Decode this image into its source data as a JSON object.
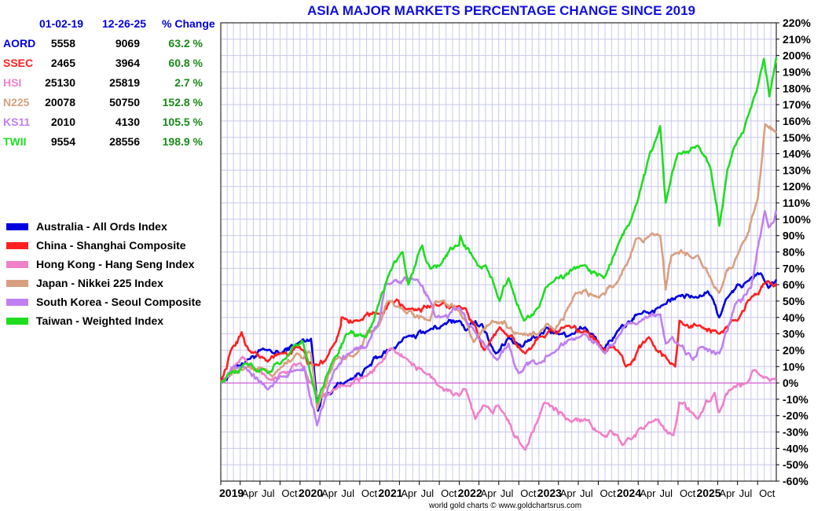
{
  "chart_data": {
    "type": "line",
    "title": "ASIA MAJOR MARKETS PERCENTAGE CHANGE SINCE 2019",
    "xlabel": "",
    "ylabel": "",
    "ylim": [
      -60,
      220
    ],
    "y_tick_step": 10,
    "yunit": "%",
    "xlim": [
      "2019-01-02",
      "2025-12-26"
    ],
    "x_ticks": [
      {
        "label": "2019",
        "date": "2019-01-02",
        "year": true
      },
      {
        "label": "Apr",
        "date": "2019-04-01"
      },
      {
        "label": "Jul",
        "date": "2019-07-01"
      },
      {
        "label": "Oct",
        "date": "2019-10-01"
      },
      {
        "label": "2020",
        "date": "2020-01-01",
        "year": true
      },
      {
        "label": "Apr",
        "date": "2020-04-01"
      },
      {
        "label": "Jul",
        "date": "2020-07-01"
      },
      {
        "label": "Oct",
        "date": "2020-10-01"
      },
      {
        "label": "2021",
        "date": "2021-01-01",
        "year": true
      },
      {
        "label": "Apr",
        "date": "2021-04-01"
      },
      {
        "label": "Jul",
        "date": "2021-07-01"
      },
      {
        "label": "Oct",
        "date": "2021-10-01"
      },
      {
        "label": "2022",
        "date": "2022-01-01",
        "year": true
      },
      {
        "label": "Apr",
        "date": "2022-04-01"
      },
      {
        "label": "Jul",
        "date": "2022-07-01"
      },
      {
        "label": "Oct",
        "date": "2022-10-01"
      },
      {
        "label": "2023",
        "date": "2023-01-01",
        "year": true
      },
      {
        "label": "Apr",
        "date": "2023-04-01"
      },
      {
        "label": "Jul",
        "date": "2023-07-01"
      },
      {
        "label": "Oct",
        "date": "2023-10-01"
      },
      {
        "label": "2024",
        "date": "2024-01-01",
        "year": true
      },
      {
        "label": "Apr",
        "date": "2024-04-01"
      },
      {
        "label": "Jul",
        "date": "2024-07-01"
      },
      {
        "label": "Oct",
        "date": "2024-10-01"
      },
      {
        "label": "2025",
        "date": "2025-01-01",
        "year": true
      },
      {
        "label": "Apr",
        "date": "2025-04-01"
      },
      {
        "label": "Jul",
        "date": "2025-07-01"
      },
      {
        "label": "Oct",
        "date": "2025-10-01"
      }
    ],
    "grid": true,
    "zero_line_color": "#cc44cc",
    "legend_position": "left",
    "series": [
      {
        "name": "Australia - All Ords Index",
        "color": "#0000e0",
        "points": [
          [
            "2019-01-02",
            0
          ],
          [
            "2019-03-01",
            9
          ],
          [
            "2019-05-01",
            14
          ],
          [
            "2019-07-31",
            20
          ],
          [
            "2019-10-01",
            18
          ],
          [
            "2019-12-20",
            24
          ],
          [
            "2020-02-20",
            27
          ],
          [
            "2020-03-23",
            -17
          ],
          [
            "2020-04-10",
            -8
          ],
          [
            "2020-06-01",
            -4
          ],
          [
            "2020-08-03",
            1
          ],
          [
            "2020-11-09",
            10
          ],
          [
            "2020-12-31",
            16
          ],
          [
            "2021-02-15",
            20
          ],
          [
            "2021-05-03",
            28
          ],
          [
            "2021-08-13",
            32
          ],
          [
            "2021-10-15",
            35
          ],
          [
            "2021-12-31",
            38
          ],
          [
            "2022-02-01",
            32
          ],
          [
            "2022-04-15",
            36
          ],
          [
            "2022-06-17",
            18
          ],
          [
            "2022-08-15",
            28
          ],
          [
            "2022-10-14",
            22
          ],
          [
            "2022-12-30",
            28
          ],
          [
            "2023-02-03",
            34
          ],
          [
            "2023-04-14",
            30
          ],
          [
            "2023-06-01",
            30
          ],
          [
            "2023-08-01",
            34
          ],
          [
            "2023-10-27",
            20
          ],
          [
            "2023-12-29",
            32
          ],
          [
            "2024-02-01",
            34
          ],
          [
            "2024-04-01",
            42
          ],
          [
            "2024-07-31",
            48
          ],
          [
            "2024-09-30",
            53
          ],
          [
            "2024-12-31",
            52
          ],
          [
            "2025-02-14",
            56
          ],
          [
            "2025-04-08",
            40
          ],
          [
            "2025-05-15",
            52
          ],
          [
            "2025-08-15",
            62
          ],
          [
            "2025-10-15",
            67
          ],
          [
            "2025-11-20",
            58
          ],
          [
            "2025-12-26",
            63.2
          ]
        ]
      },
      {
        "name": "China - Shanghai Composite",
        "color": "#ff2020",
        "points": [
          [
            "2019-01-02",
            0
          ],
          [
            "2019-02-25",
            22
          ],
          [
            "2019-04-08",
            31
          ],
          [
            "2019-05-10",
            20
          ],
          [
            "2019-08-06",
            13
          ],
          [
            "2019-10-01",
            18
          ],
          [
            "2019-12-31",
            22
          ],
          [
            "2020-02-03",
            12
          ],
          [
            "2020-03-19",
            11
          ],
          [
            "2020-05-01",
            15
          ],
          [
            "2020-07-06",
            35
          ],
          [
            "2020-07-09",
            40
          ],
          [
            "2020-10-01",
            38
          ],
          [
            "2020-12-31",
            42
          ],
          [
            "2021-02-18",
            50
          ],
          [
            "2021-05-01",
            45
          ],
          [
            "2021-09-13",
            48
          ],
          [
            "2021-12-31",
            47
          ],
          [
            "2022-03-15",
            35
          ],
          [
            "2022-04-26",
            20
          ],
          [
            "2022-07-05",
            34
          ],
          [
            "2022-10-31",
            18
          ],
          [
            "2022-12-30",
            28
          ],
          [
            "2023-05-09",
            35
          ],
          [
            "2023-08-01",
            32
          ],
          [
            "2023-10-23",
            20
          ],
          [
            "2023-12-29",
            20
          ],
          [
            "2024-02-05",
            10
          ],
          [
            "2024-05-20",
            28
          ],
          [
            "2024-09-18",
            10
          ],
          [
            "2024-10-08",
            38
          ],
          [
            "2024-12-31",
            35
          ],
          [
            "2025-04-08",
            30
          ],
          [
            "2025-07-01",
            38
          ],
          [
            "2025-09-01",
            52
          ],
          [
            "2025-11-13",
            62
          ],
          [
            "2025-12-26",
            60.8
          ]
        ]
      },
      {
        "name": "Hong Kong - Hang Seng Index",
        "color": "#f080c8",
        "points": [
          [
            "2019-01-02",
            0
          ],
          [
            "2019-04-12",
            16
          ],
          [
            "2019-06-01",
            9
          ],
          [
            "2019-08-15",
            2
          ],
          [
            "2019-10-01",
            6
          ],
          [
            "2019-12-31",
            12
          ],
          [
            "2020-02-03",
            4
          ],
          [
            "2020-03-19",
            -8
          ],
          [
            "2020-06-01",
            -4
          ],
          [
            "2020-08-01",
            -2
          ],
          [
            "2020-11-01",
            4
          ],
          [
            "2020-12-31",
            12
          ],
          [
            "2021-02-18",
            21
          ],
          [
            "2021-05-01",
            15
          ],
          [
            "2021-07-28",
            6
          ],
          [
            "2021-10-01",
            -2
          ],
          [
            "2021-12-31",
            -8
          ],
          [
            "2022-02-01",
            -4
          ],
          [
            "2022-03-15",
            -22
          ],
          [
            "2022-05-01",
            -14
          ],
          [
            "2022-07-01",
            -14
          ],
          [
            "2022-10-31",
            -41
          ],
          [
            "2022-12-30",
            -22
          ],
          [
            "2023-01-27",
            -12
          ],
          [
            "2023-05-31",
            -24
          ],
          [
            "2023-08-01",
            -22
          ],
          [
            "2023-10-01",
            -30
          ],
          [
            "2023-12-29",
            -32
          ],
          [
            "2024-01-22",
            -38
          ],
          [
            "2024-05-20",
            -24
          ],
          [
            "2024-09-10",
            -32
          ],
          [
            "2024-10-07",
            -12
          ],
          [
            "2024-12-31",
            -22
          ],
          [
            "2025-03-18",
            -6
          ],
          [
            "2025-04-08",
            -18
          ],
          [
            "2025-06-01",
            -4
          ],
          [
            "2025-08-15",
            0
          ],
          [
            "2025-10-02",
            6
          ],
          [
            "2025-12-26",
            2.7
          ]
        ]
      },
      {
        "name": "Japan - Nikkei 225 Index",
        "color": "#d8a080",
        "points": [
          [
            "2019-01-02",
            0
          ],
          [
            "2019-05-01",
            10
          ],
          [
            "2019-08-26",
            4
          ],
          [
            "2019-12-17",
            18
          ],
          [
            "2020-02-20",
            18
          ],
          [
            "2020-03-19",
            -16
          ],
          [
            "2020-06-08",
            14
          ],
          [
            "2020-09-01",
            16
          ],
          [
            "2020-12-31",
            36
          ],
          [
            "2021-02-16",
            50
          ],
          [
            "2021-04-01",
            46
          ],
          [
            "2021-08-20",
            38
          ],
          [
            "2021-09-14,",
            50
          ],
          [
            "2021-12-31",
            44
          ],
          [
            "2022-03-08",
            25
          ],
          [
            "2022-06-01",
            38
          ],
          [
            "2022-10-03",
            30
          ],
          [
            "2022-12-30",
            30
          ],
          [
            "2023-03-15",
            32
          ],
          [
            "2023-06-19",
            55
          ],
          [
            "2023-10-04",
            52
          ],
          [
            "2023-12-29",
            62
          ],
          [
            "2024-03-22",
            88
          ],
          [
            "2024-07-11",
            90
          ],
          [
            "2024-08-05",
            57
          ],
          [
            "2024-09-01",
            78
          ],
          [
            "2024-12-31",
            78
          ],
          [
            "2025-04-08",
            55
          ],
          [
            "2025-07-01",
            78
          ],
          [
            "2025-10-01",
            112
          ],
          [
            "2025-11-05",
            158
          ],
          [
            "2025-12-26",
            152.8
          ]
        ]
      },
      {
        "name": "South Korea - Seoul Composite",
        "color": "#c080f0",
        "points": [
          [
            "2019-01-02",
            0
          ],
          [
            "2019-04-15",
            10
          ],
          [
            "2019-08-06",
            -4
          ],
          [
            "2019-10-01",
            4
          ],
          [
            "2019-12-31",
            8
          ],
          [
            "2020-01-20",
            10
          ],
          [
            "2020-03-19",
            -26
          ],
          [
            "2020-06-08",
            8
          ],
          [
            "2020-08-14",
            18
          ],
          [
            "2020-11-01",
            22
          ],
          [
            "2020-12-31",
            38
          ],
          [
            "2021-01-25",
            60
          ],
          [
            "2021-06-24",
            63
          ],
          [
            "2021-08-20",
            50
          ],
          [
            "2021-10-05",
            40
          ],
          [
            "2021-12-31",
            46
          ],
          [
            "2022-03-01",
            34
          ],
          [
            "2022-06-23",
            14
          ],
          [
            "2022-08-15",
            24
          ],
          [
            "2022-09-30",
            6
          ],
          [
            "2022-12-30",
            12
          ],
          [
            "2023-03-01",
            18
          ],
          [
            "2023-07-25",
            30
          ],
          [
            "2023-10-31",
            18
          ],
          [
            "2023-12-29",
            28
          ],
          [
            "2024-03-28",
            36
          ],
          [
            "2024-07-11",
            42
          ],
          [
            "2024-08-05",
            24
          ],
          [
            "2024-10-01",
            24
          ],
          [
            "2024-12-09",
            14
          ],
          [
            "2025-01-15",
            22
          ],
          [
            "2025-04-09",
            18
          ],
          [
            "2025-06-20",
            48
          ],
          [
            "2025-09-01",
            58
          ],
          [
            "2025-11-03",
            105
          ],
          [
            "2025-11-21",
            95
          ],
          [
            "2025-12-26",
            105.5
          ]
        ]
      },
      {
        "name": "Taiwan - Weighted Index",
        "color": "#20dd20",
        "points": [
          [
            "2019-01-02",
            0
          ],
          [
            "2019-04-23",
            12
          ],
          [
            "2019-08-06",
            6
          ],
          [
            "2019-10-15",
            14
          ],
          [
            "2019-12-31",
            24
          ],
          [
            "2020-01-14",
            25
          ],
          [
            "2020-03-19",
            -12
          ],
          [
            "2020-06-01",
            14
          ],
          [
            "2020-08-01",
            30
          ],
          [
            "2020-10-30",
            28
          ],
          [
            "2020-12-31",
            50
          ],
          [
            "2021-02-17",
            68
          ],
          [
            "2021-04-15",
            80
          ],
          [
            "2021-05-12",
            60
          ],
          [
            "2021-07-15",
            84
          ],
          [
            "2021-08-20",
            70
          ],
          [
            "2021-10-05",
            72
          ],
          [
            "2021-12-31",
            84
          ],
          [
            "2022-01-05",
            90
          ],
          [
            "2022-03-08",
            76
          ],
          [
            "2022-05-01",
            72
          ],
          [
            "2022-07-05",
            50
          ],
          [
            "2022-08-15",
            64
          ],
          [
            "2022-10-25",
            38
          ],
          [
            "2022-12-30",
            46
          ],
          [
            "2023-02-15",
            60
          ],
          [
            "2023-07-31",
            72
          ],
          [
            "2023-10-26",
            64
          ],
          [
            "2023-12-29",
            84
          ],
          [
            "2024-03-01",
            100
          ],
          [
            "2024-07-11",
            157
          ],
          [
            "2024-08-05",
            110
          ],
          [
            "2024-09-30",
            140
          ],
          [
            "2024-12-31",
            145
          ],
          [
            "2025-03-01",
            130
          ],
          [
            "2025-04-09",
            96
          ],
          [
            "2025-05-15",
            130
          ],
          [
            "2025-07-01",
            148
          ],
          [
            "2025-09-01",
            168
          ],
          [
            "2025-10-30",
            198
          ],
          [
            "2025-11-24",
            175
          ],
          [
            "2025-12-26",
            198.9
          ]
        ]
      }
    ],
    "annotation": "world gold charts © www.goldchartsrus.com"
  },
  "table": {
    "headers": {
      "date1": "01-02-19",
      "date2": "12-26-25",
      "change": "% Change"
    },
    "rows": [
      {
        "code": "AORD",
        "v1": "5558",
        "v2": "9069",
        "chg": "63.2 %",
        "color": "#0000e0"
      },
      {
        "code": "SSEC",
        "v1": "2465",
        "v2": "3964",
        "chg": "60.8 %",
        "color": "#ff2020"
      },
      {
        "code": "HSI",
        "v1": "25130",
        "v2": "25819",
        "chg": "2.7 %",
        "color": "#f080c8"
      },
      {
        "code": "N225",
        "v1": "20078",
        "v2": "50750",
        "chg": "152.8 %",
        "color": "#d8a080"
      },
      {
        "code": "KS11",
        "v1": "2010",
        "v2": "4130",
        "chg": "105.5 %",
        "color": "#c080f0"
      },
      {
        "code": "TWII",
        "v1": "9554",
        "v2": "28556",
        "chg": "198.9 %",
        "color": "#20dd20"
      }
    ],
    "header_color": "#0000e0",
    "change_color": "#1a8a1a"
  }
}
